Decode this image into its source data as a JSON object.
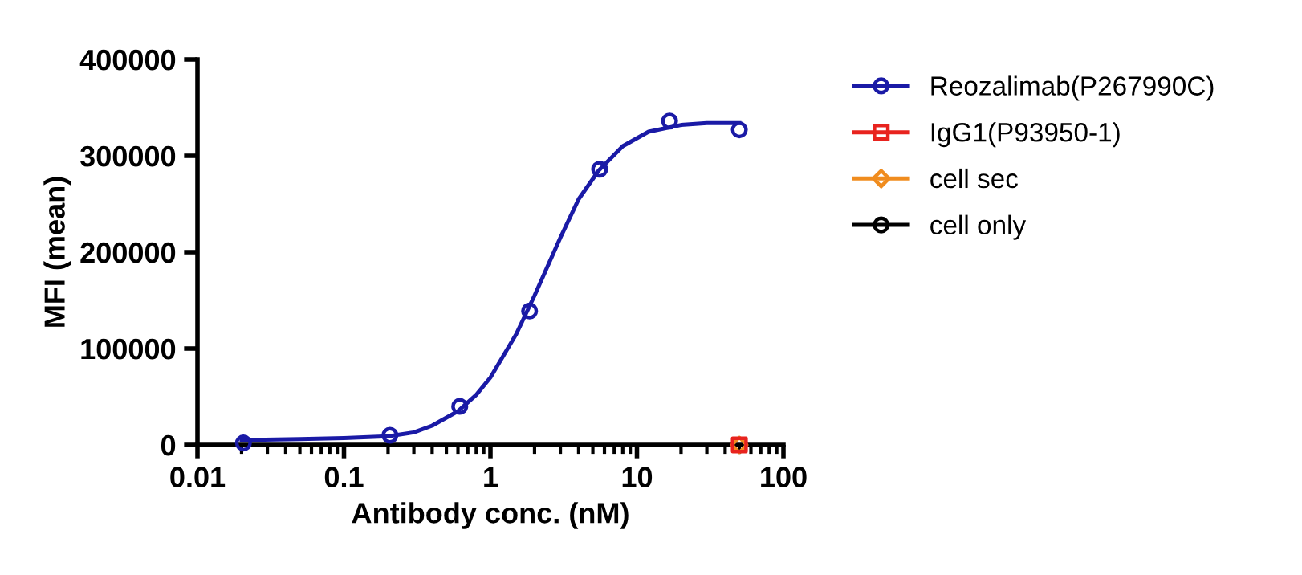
{
  "chart_data": {
    "type": "scatter",
    "xlabel": "Antibody conc. (nM)",
    "ylabel": "MFI (mean)",
    "log": "x",
    "xlim": [
      0.01,
      100
    ],
    "xticks": [
      0.01,
      0.1,
      1,
      10,
      100
    ],
    "ylim": [
      0,
      400000
    ],
    "yticks": [
      0,
      100000,
      200000,
      300000,
      400000
    ],
    "grid": false,
    "legend": "top right",
    "series": [
      {
        "name": "Reozalimab(P267990C)",
        "color": "#1a1aa6",
        "marker": "circle",
        "x": [
          0.0206,
          0.206,
          0.617,
          1.85,
          5.56,
          16.7,
          50
        ],
        "values": [
          2000,
          10000,
          40000,
          139000,
          286000,
          336000,
          327000
        ]
      },
      {
        "type": "line",
        "color": "#1a1aa6",
        "marker": "none",
        "x": [
          0.02,
          0.05,
          0.1,
          0.2,
          0.3,
          0.4,
          0.6,
          0.8,
          1,
          1.5,
          2,
          3,
          4,
          5.5,
          8,
          12,
          20,
          30,
          50
        ],
        "values": [
          5000,
          6000,
          7000,
          9000,
          13000,
          20000,
          35000,
          52000,
          70000,
          115000,
          155000,
          215000,
          255000,
          285000,
          310000,
          325000,
          332000,
          334000,
          334000
        ]
      },
      {
        "name": "IgG1(P93950-1)",
        "color": "#e8231e",
        "marker": "square",
        "x": [
          50
        ],
        "values": [
          0
        ]
      },
      {
        "name": "cell sec",
        "color": "#f08c1e",
        "marker": "diamond",
        "x": [
          50
        ],
        "values": [
          0
        ]
      },
      {
        "name": "cell only",
        "color": "#000000",
        "marker": "circle",
        "x": [
          null
        ],
        "values": [
          null
        ]
      }
    ]
  }
}
